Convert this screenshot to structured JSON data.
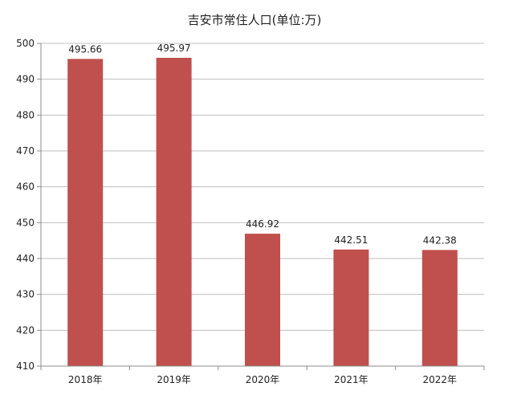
{
  "chart_data": {
    "type": "bar",
    "title": "吉安市常住人口(单位:万)",
    "categories": [
      "2018年",
      "2019年",
      "2020年",
      "2021年",
      "2022年"
    ],
    "values": [
      495.66,
      495.97,
      446.92,
      442.51,
      442.38
    ],
    "data_labels": [
      "495.66",
      "495.97",
      "446.92",
      "442.51",
      "442.38"
    ],
    "ylim": [
      410,
      500
    ],
    "yticks": [
      410,
      420,
      430,
      440,
      450,
      460,
      470,
      480,
      490,
      500
    ],
    "grid": true,
    "legend": "none",
    "bar_color": "#C0504D",
    "grid_color": "#BFBFBF",
    "axis_color": "#8C8C8C"
  }
}
